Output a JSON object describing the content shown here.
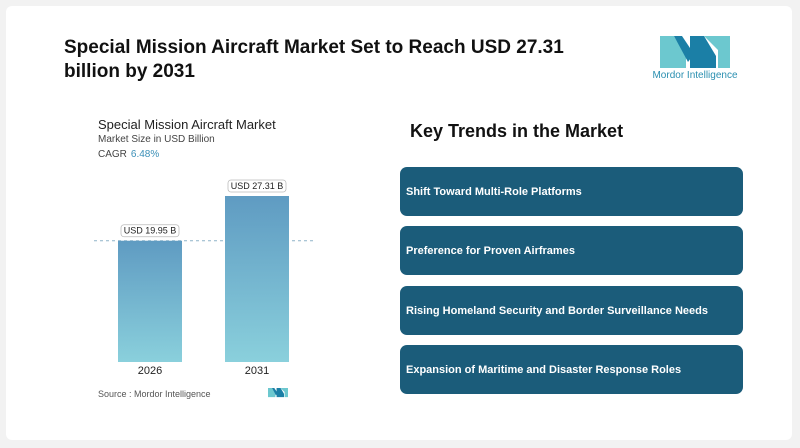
{
  "headline": "Special Mission Aircraft Market Set to Reach USD 27.31 billion by 2031",
  "logo": {
    "text": "Mordor Intelligence",
    "icon": "mordor-logo-icon"
  },
  "chart_header": {
    "title": "Special Mission Aircraft Market",
    "subtitle": "Market Size in USD Billion",
    "cagr_label": "CAGR",
    "cagr_value": "6.48%"
  },
  "chart_data": {
    "type": "bar",
    "title": "Special Mission Aircraft Market",
    "ylabel": "Market Size in USD Billion",
    "categories": [
      "2026",
      "2031"
    ],
    "values": [
      19.95,
      27.31
    ],
    "value_labels": [
      "USD 19.95 B",
      "USD 27.31 B"
    ],
    "ylim": [
      0,
      27.31
    ],
    "grid": false,
    "reference_line": 19.95
  },
  "source": "Source : Mordor Intelligence",
  "trends": {
    "title": "Key Trends in the Market",
    "items": [
      "Shift Toward Multi-Role Platforms",
      "Preference for Proven Airframes",
      "Rising Homeland Security and Border Surveillance Needs",
      "Expansion of Maritime and Disaster Response Roles"
    ]
  },
  "colors": {
    "accent": "#1b5c7a",
    "bar_top": "#5f9bc2",
    "bar_bottom": "#8ad0dc",
    "cagr": "#3a8fb7",
    "logo_dark": "#1b7fa6",
    "logo_light": "#6cc8cf"
  }
}
